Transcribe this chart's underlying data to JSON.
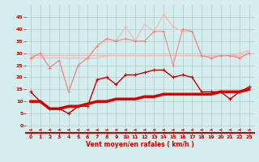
{
  "x": [
    0,
    1,
    2,
    3,
    4,
    5,
    6,
    7,
    8,
    9,
    10,
    11,
    12,
    13,
    14,
    15,
    16,
    17,
    18,
    19,
    20,
    21,
    22,
    23
  ],
  "line_pink_spike": [
    28,
    30,
    24,
    27,
    14,
    25,
    28,
    33,
    36,
    35,
    41,
    35,
    42,
    39,
    46,
    41,
    39,
    39,
    29,
    28,
    29,
    29,
    28,
    30
  ],
  "line_pink_lower": [
    28,
    30,
    24,
    27,
    14,
    25,
    28,
    33,
    36,
    35,
    36,
    35,
    35,
    39,
    39,
    25,
    40,
    39,
    29,
    28,
    29,
    29,
    28,
    30
  ],
  "line_pale_slope1": [
    29,
    29,
    29,
    29,
    29,
    29,
    29,
    29,
    29,
    29,
    29,
    29,
    29,
    29,
    29,
    29,
    29,
    29,
    29,
    29,
    29,
    29,
    29,
    30
  ],
  "line_pale_slope2": [
    28,
    28,
    28,
    28,
    28,
    28,
    28,
    28,
    29,
    29,
    29,
    29,
    29,
    29,
    29,
    29,
    29,
    29,
    29,
    29,
    29,
    29,
    30,
    31
  ],
  "line_dark_red": [
    14,
    10,
    7,
    7,
    5,
    8,
    8,
    19,
    20,
    17,
    21,
    21,
    22,
    23,
    23,
    20,
    21,
    20,
    14,
    14,
    14,
    11,
    14,
    16
  ],
  "line_thin_straight": [
    10,
    10,
    7,
    7,
    8,
    8,
    9,
    10,
    10,
    11,
    11,
    11,
    12,
    12,
    13,
    13,
    13,
    13,
    13,
    13,
    14,
    14,
    14,
    15
  ],
  "background_color": "#d4eeee",
  "grid_color": "#b0c8c8",
  "xlabel": "Vent moyen/en rafales ( km/h )",
  "ylim": [
    -3,
    50
  ],
  "xlim": [
    -0.5,
    23.5
  ],
  "yticks": [
    0,
    5,
    10,
    15,
    20,
    25,
    30,
    35,
    40,
    45
  ],
  "xticks": [
    0,
    1,
    2,
    3,
    4,
    5,
    6,
    7,
    8,
    9,
    10,
    11,
    12,
    13,
    14,
    15,
    16,
    17,
    18,
    19,
    20,
    21,
    22,
    23
  ],
  "color_pink_light": "#f5b8b8",
  "color_pink_mid": "#e88888",
  "color_red_dark": "#cc0000",
  "color_red_bright": "#ee0000",
  "color_red_thick": "#dd0000"
}
